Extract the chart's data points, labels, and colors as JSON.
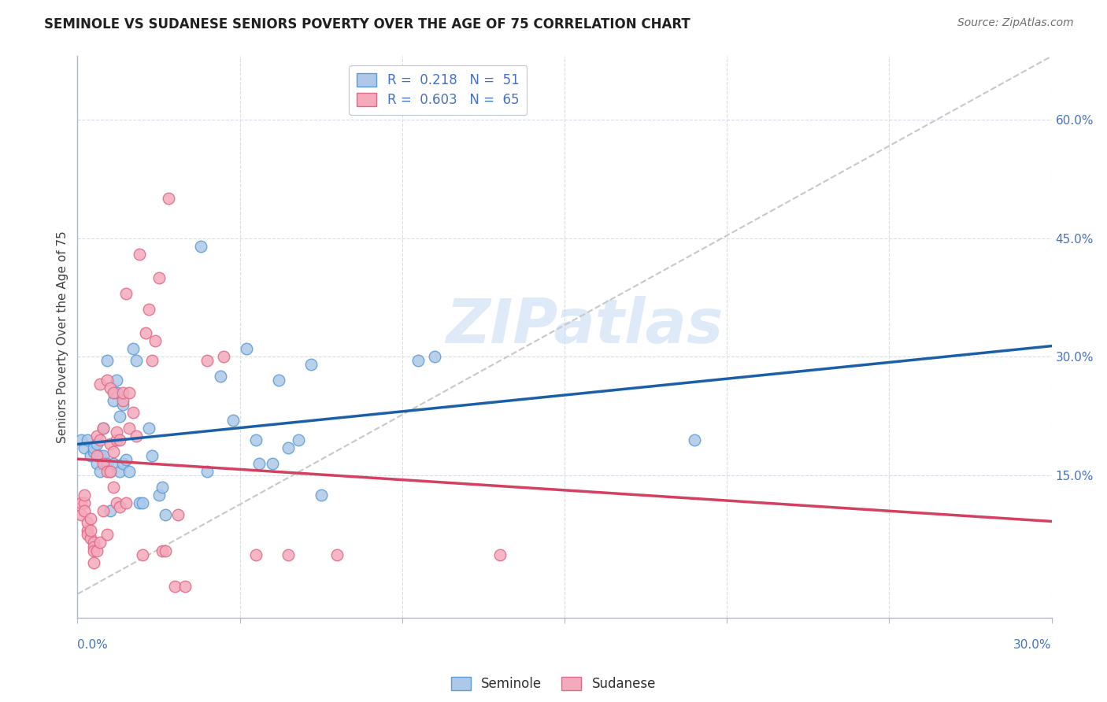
{
  "title": "SEMINOLE VS SUDANESE SENIORS POVERTY OVER THE AGE OF 75 CORRELATION CHART",
  "source": "Source: ZipAtlas.com",
  "ylabel": "Seniors Poverty Over the Age of 75",
  "right_yticks": [
    "60.0%",
    "45.0%",
    "30.0%",
    "15.0%"
  ],
  "right_ytick_vals": [
    0.6,
    0.45,
    0.3,
    0.15
  ],
  "xmin": 0.0,
  "xmax": 0.3,
  "ymin": -0.03,
  "ymax": 0.68,
  "seminole_color": "#adc8e8",
  "sudanese_color": "#f4aabb",
  "seminole_edge": "#5b9bd5",
  "sudanese_edge": "#e06888",
  "trend_seminole_color": "#1a5fa8",
  "trend_sudanese_color": "#d44060",
  "trend_ref_color": "#c8c8c8",
  "watermark": "ZIPatlas",
  "seminole_scatter": [
    [
      0.001,
      0.195
    ],
    [
      0.002,
      0.185
    ],
    [
      0.003,
      0.195
    ],
    [
      0.004,
      0.175
    ],
    [
      0.005,
      0.18
    ],
    [
      0.005,
      0.185
    ],
    [
      0.006,
      0.19
    ],
    [
      0.006,
      0.165
    ],
    [
      0.007,
      0.175
    ],
    [
      0.007,
      0.155
    ],
    [
      0.008,
      0.175
    ],
    [
      0.008,
      0.21
    ],
    [
      0.009,
      0.295
    ],
    [
      0.009,
      0.165
    ],
    [
      0.01,
      0.155
    ],
    [
      0.01,
      0.105
    ],
    [
      0.011,
      0.245
    ],
    [
      0.011,
      0.165
    ],
    [
      0.012,
      0.27
    ],
    [
      0.012,
      0.255
    ],
    [
      0.013,
      0.155
    ],
    [
      0.013,
      0.225
    ],
    [
      0.014,
      0.165
    ],
    [
      0.014,
      0.24
    ],
    [
      0.015,
      0.17
    ],
    [
      0.016,
      0.155
    ],
    [
      0.017,
      0.31
    ],
    [
      0.018,
      0.295
    ],
    [
      0.019,
      0.115
    ],
    [
      0.02,
      0.115
    ],
    [
      0.022,
      0.21
    ],
    [
      0.023,
      0.175
    ],
    [
      0.025,
      0.125
    ],
    [
      0.026,
      0.135
    ],
    [
      0.027,
      0.1
    ],
    [
      0.038,
      0.44
    ],
    [
      0.04,
      0.155
    ],
    [
      0.044,
      0.275
    ],
    [
      0.048,
      0.22
    ],
    [
      0.052,
      0.31
    ],
    [
      0.055,
      0.195
    ],
    [
      0.056,
      0.165
    ],
    [
      0.06,
      0.165
    ],
    [
      0.062,
      0.27
    ],
    [
      0.065,
      0.185
    ],
    [
      0.068,
      0.195
    ],
    [
      0.072,
      0.29
    ],
    [
      0.075,
      0.125
    ],
    [
      0.105,
      0.295
    ],
    [
      0.11,
      0.3
    ],
    [
      0.19,
      0.195
    ]
  ],
  "sudanese_scatter": [
    [
      0.001,
      0.115
    ],
    [
      0.001,
      0.1
    ],
    [
      0.002,
      0.115
    ],
    [
      0.002,
      0.125
    ],
    [
      0.002,
      0.105
    ],
    [
      0.003,
      0.08
    ],
    [
      0.003,
      0.09
    ],
    [
      0.003,
      0.075
    ],
    [
      0.004,
      0.07
    ],
    [
      0.004,
      0.095
    ],
    [
      0.004,
      0.08
    ],
    [
      0.005,
      0.065
    ],
    [
      0.005,
      0.06
    ],
    [
      0.005,
      0.055
    ],
    [
      0.005,
      0.04
    ],
    [
      0.006,
      0.2
    ],
    [
      0.006,
      0.175
    ],
    [
      0.006,
      0.055
    ],
    [
      0.007,
      0.195
    ],
    [
      0.007,
      0.265
    ],
    [
      0.007,
      0.065
    ],
    [
      0.008,
      0.21
    ],
    [
      0.008,
      0.165
    ],
    [
      0.008,
      0.105
    ],
    [
      0.009,
      0.27
    ],
    [
      0.009,
      0.155
    ],
    [
      0.009,
      0.075
    ],
    [
      0.01,
      0.26
    ],
    [
      0.01,
      0.155
    ],
    [
      0.01,
      0.19
    ],
    [
      0.011,
      0.135
    ],
    [
      0.011,
      0.255
    ],
    [
      0.011,
      0.18
    ],
    [
      0.012,
      0.195
    ],
    [
      0.012,
      0.115
    ],
    [
      0.012,
      0.205
    ],
    [
      0.013,
      0.195
    ],
    [
      0.013,
      0.11
    ],
    [
      0.014,
      0.245
    ],
    [
      0.014,
      0.255
    ],
    [
      0.015,
      0.115
    ],
    [
      0.015,
      0.38
    ],
    [
      0.016,
      0.21
    ],
    [
      0.016,
      0.255
    ],
    [
      0.017,
      0.23
    ],
    [
      0.018,
      0.2
    ],
    [
      0.019,
      0.43
    ],
    [
      0.02,
      0.05
    ],
    [
      0.021,
      0.33
    ],
    [
      0.022,
      0.36
    ],
    [
      0.023,
      0.295
    ],
    [
      0.024,
      0.32
    ],
    [
      0.025,
      0.4
    ],
    [
      0.026,
      0.055
    ],
    [
      0.027,
      0.055
    ],
    [
      0.028,
      0.5
    ],
    [
      0.03,
      0.01
    ],
    [
      0.031,
      0.1
    ],
    [
      0.033,
      0.01
    ],
    [
      0.04,
      0.295
    ],
    [
      0.045,
      0.3
    ],
    [
      0.055,
      0.05
    ],
    [
      0.065,
      0.05
    ],
    [
      0.08,
      0.05
    ],
    [
      0.13,
      0.05
    ]
  ]
}
